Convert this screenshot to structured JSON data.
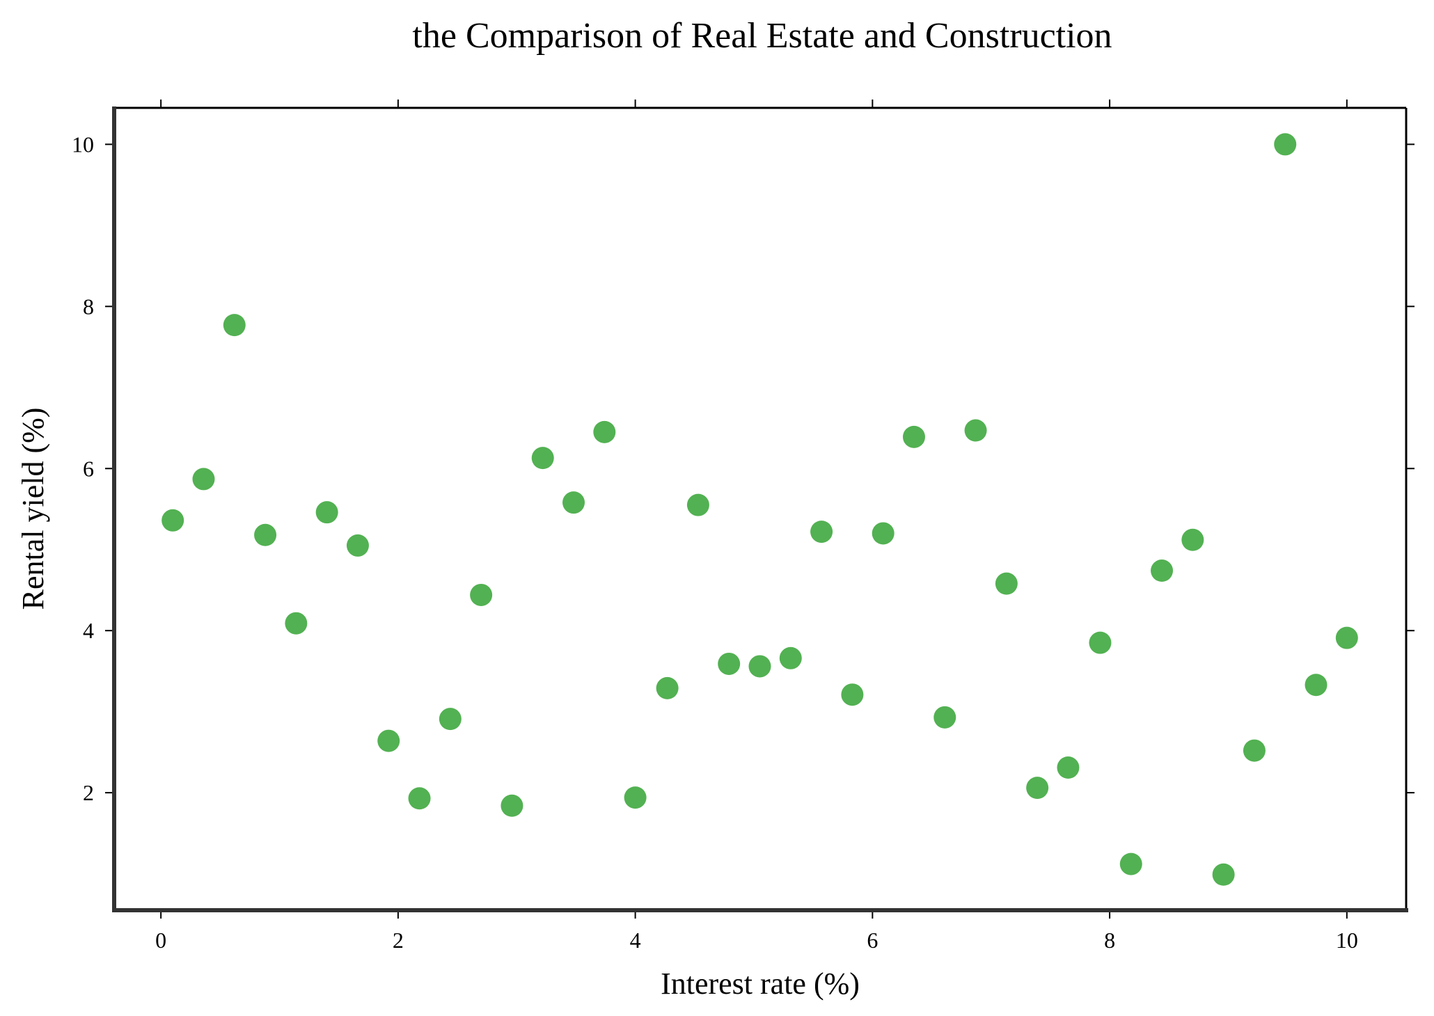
{
  "chart_data": {
    "type": "scatter",
    "title": "the Comparison of Real Estate and Construction",
    "xlabel": "Interest rate (%)",
    "ylabel": "Rental yield (%)",
    "xlim": [
      -0.4,
      10.5
    ],
    "ylim": [
      0.55,
      10.45
    ],
    "xticks": [
      0,
      2,
      4,
      6,
      8,
      10
    ],
    "yticks": [
      2,
      4,
      6,
      8,
      10
    ],
    "grid": false,
    "marker_color": "#52b152",
    "series": [
      {
        "name": "Rental yield",
        "x": [
          0.1,
          0.36,
          0.62,
          0.88,
          1.14,
          1.4,
          1.66,
          1.92,
          2.18,
          2.44,
          2.7,
          2.96,
          3.22,
          3.48,
          3.74,
          4.0,
          4.27,
          4.53,
          4.79,
          5.05,
          5.31,
          5.57,
          5.83,
          6.09,
          6.35,
          6.61,
          6.87,
          7.13,
          7.39,
          7.65,
          7.92,
          8.18,
          8.44,
          8.7,
          8.96,
          9.22,
          9.48,
          9.74,
          10.0
        ],
        "y": [
          5.36,
          5.87,
          7.77,
          5.18,
          4.09,
          5.46,
          5.05,
          2.64,
          1.93,
          2.91,
          4.44,
          1.84,
          6.13,
          5.58,
          6.45,
          1.94,
          3.29,
          5.55,
          3.59,
          3.56,
          3.66,
          5.22,
          3.21,
          5.2,
          6.39,
          2.93,
          6.47,
          4.58,
          2.06,
          2.31,
          3.85,
          1.12,
          4.74,
          5.12,
          0.99,
          2.52,
          10.0,
          3.33,
          3.91
        ]
      }
    ]
  }
}
